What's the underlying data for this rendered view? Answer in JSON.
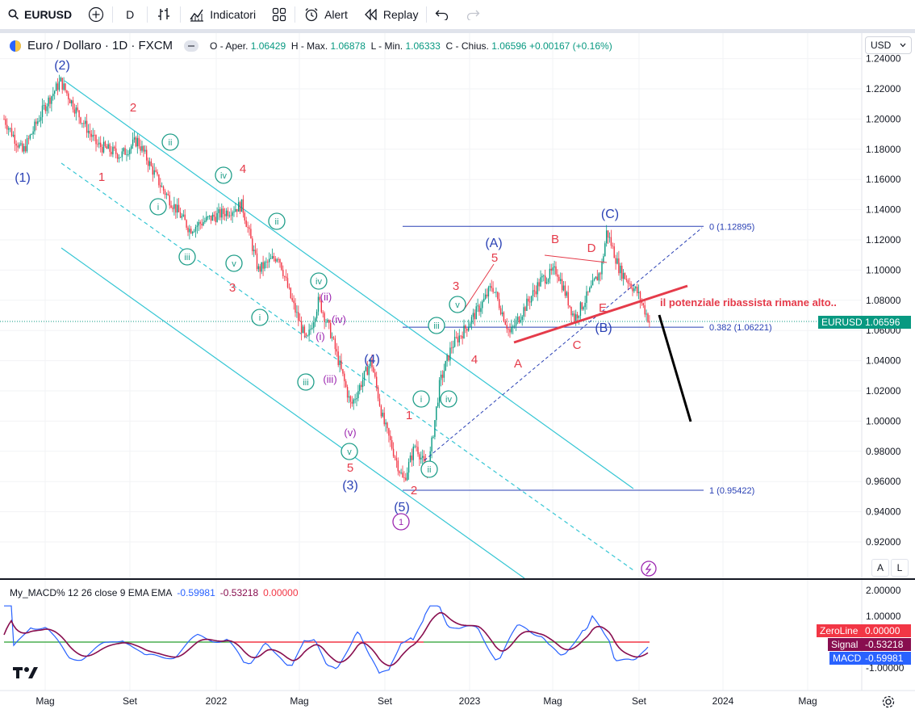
{
  "toolbar": {
    "symbol": "EURUSD",
    "interval": "D",
    "indicators_label": "Indicatori",
    "alert_label": "Alert",
    "replay_label": "Replay"
  },
  "legend": {
    "title": "Euro / Dollaro · 1D · FXCM",
    "open_label": "O - Aper.",
    "open": "1.06429",
    "high_label": "H - Max.",
    "high": "1.06878",
    "low_label": "L - Min.",
    "low": "1.06333",
    "close_label": "C - Chius.",
    "close": "1.06596",
    "change": "+0.00167 (+0.16%)"
  },
  "currency_button": "USD",
  "axis_buttons": {
    "auto": "A",
    "log": "L"
  },
  "price_axis": {
    "ticks": [
      "1.24000",
      "1.22000",
      "1.20000",
      "1.18000",
      "1.16000",
      "1.14000",
      "1.12000",
      "1.10000",
      "1.08000",
      "1.06000",
      "1.04000",
      "1.02000",
      "1.00000",
      "0.98000",
      "0.96000",
      "0.94000",
      "0.92000"
    ],
    "current_symbol": "EURUSD",
    "current_price": "1.06596"
  },
  "time_axis": [
    "Mag",
    "Set",
    "2022",
    "Mag",
    "Set",
    "2023",
    "Mag",
    "Set",
    "2024",
    "Mag"
  ],
  "fib_levels": [
    {
      "label": "0 (1.12895)",
      "price": 1.12895
    },
    {
      "label": "0.382 (1.06221)",
      "price": 1.06221
    },
    {
      "label": "1 (0.95422)",
      "price": 0.95422
    }
  ],
  "annotation": "il potenziale ribassista rimane alto..",
  "wave_labels": {
    "blue": [
      "(2)",
      "(1)",
      "(A)",
      "(C)",
      "(B)",
      "(4)",
      "(3)",
      "(5)"
    ],
    "red": [
      "2",
      "1",
      "4",
      "3",
      "5",
      "3",
      "4",
      "5",
      "1",
      "2",
      "B",
      "D",
      "E",
      "A",
      "C"
    ],
    "green": [
      "ii",
      "i",
      "iv",
      "iii",
      "v",
      "ii",
      "iv",
      "i",
      "iii",
      "v",
      "i",
      "iv",
      "ii",
      "iii",
      "v"
    ],
    "purple": [
      "(ii)",
      "(i)",
      "(iv)",
      "(iii)",
      "(v)",
      "1"
    ]
  },
  "macd": {
    "legend_name": "My_MACD% 12 26 close 9 EMA EMA",
    "macd_value": "-0.59981",
    "signal_value": "-0.53218",
    "zero_value": "0.00000",
    "axis_ticks": [
      "2.00000",
      "1.00000",
      "-1.00000"
    ],
    "zeroline_label": "ZeroLine",
    "signal_label": "Signal",
    "macd_label": "MACD"
  },
  "colors": {
    "wave_blue": "#2a41b5",
    "wave_red": "#e53b4a",
    "wave_green": "#1f9e89",
    "wave_purple": "#9c27b0",
    "channel": "#35c6d4",
    "candle_up": "#089981",
    "candle_down": "#f23645",
    "macd": "#2962ff",
    "signal": "#880e4f"
  }
}
